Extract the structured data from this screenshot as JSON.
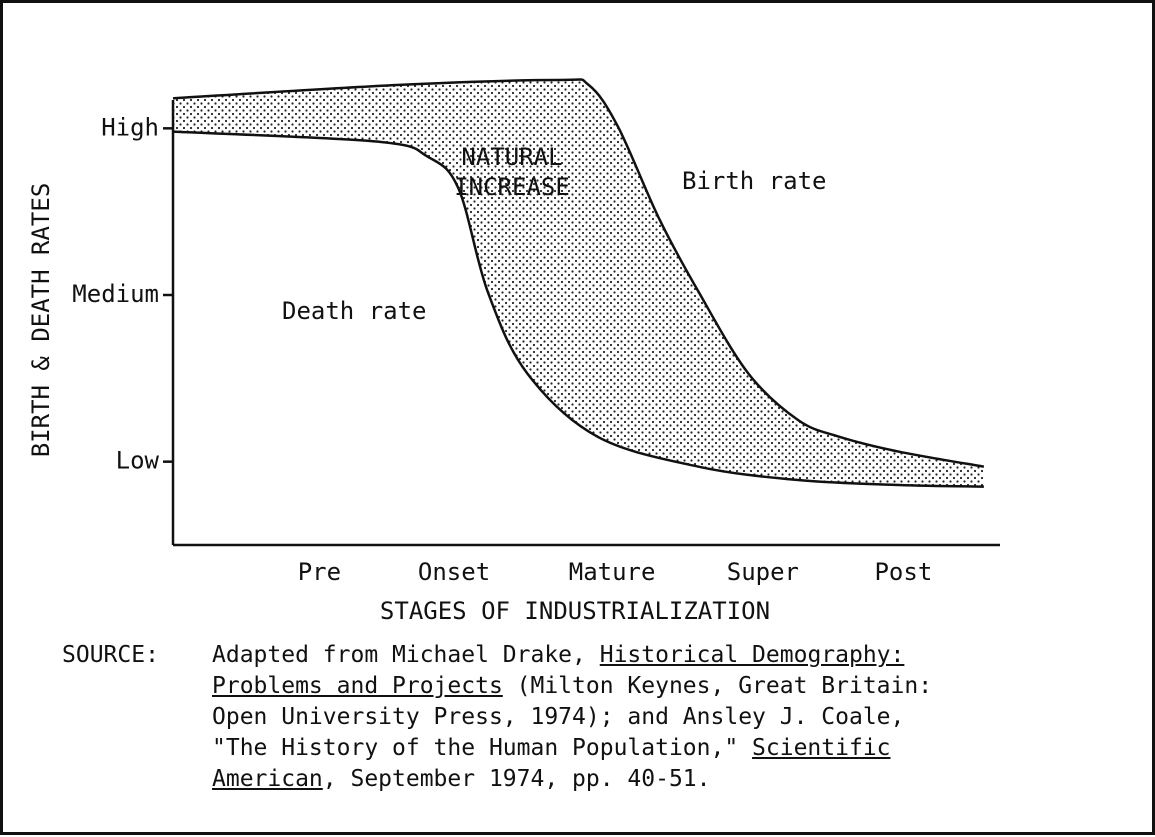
{
  "chart_data": {
    "type": "line",
    "ylabel": "BIRTH & DEATH RATES",
    "xlabel": "STAGES OF INDUSTRIALIZATION",
    "xlim": [
      0,
      5.65
    ],
    "xticks": [
      {
        "value": 1,
        "label": "Pre"
      },
      {
        "value": 1.92,
        "label": "Onset"
      },
      {
        "value": 3.0,
        "label": "Mature"
      },
      {
        "value": 4.03,
        "label": "Super"
      },
      {
        "value": 4.99,
        "label": "Post"
      }
    ],
    "ylim": [
      0.5,
      3.35
    ],
    "yticks": [
      {
        "value": 3,
        "label": "High"
      },
      {
        "value": 2,
        "label": "Medium"
      },
      {
        "value": 1,
        "label": "Low"
      }
    ],
    "annotations": [
      "NATURAL",
      "INCREASE"
    ],
    "series": [
      {
        "name": "Birth rate",
        "color": "#111111",
        "x": [
          0.0,
          1.53,
          2.63,
          2.84,
          3.04,
          3.32,
          3.59,
          3.93,
          4.27,
          4.55,
          4.96,
          5.54
        ],
        "values": [
          3.18,
          3.26,
          3.29,
          3.26,
          3.01,
          2.46,
          2.02,
          1.53,
          1.25,
          1.15,
          1.06,
          0.97
        ]
      },
      {
        "name": "Death rate",
        "color": "#111111",
        "x": [
          0.0,
          1.4,
          1.74,
          1.95,
          2.15,
          2.42,
          2.9,
          3.59,
          4.27,
          4.96,
          5.54
        ],
        "values": [
          2.98,
          2.92,
          2.83,
          2.64,
          2.02,
          1.53,
          1.15,
          0.97,
          0.89,
          0.86,
          0.85
        ]
      }
    ]
  },
  "source": {
    "label": "SOURCE:",
    "lines": [
      [
        {
          "text": "Adapted from Michael Drake, "
        },
        {
          "text": "Historical Demography:",
          "underline": true
        }
      ],
      [
        {
          "text": "Problems and Projects",
          "underline": true
        },
        {
          "text": " (Milton Keynes, Great Britain:"
        }
      ],
      [
        {
          "text": "Open University Press, 1974); and Ansley J. Coale,"
        }
      ],
      [
        {
          "text": "\"The History of the Human Population,\" "
        },
        {
          "text": "Scientific",
          "underline": true
        }
      ],
      [
        {
          "text": "American",
          "underline": true
        },
        {
          "text": ", September 1974, pp. 40-51."
        }
      ]
    ]
  }
}
